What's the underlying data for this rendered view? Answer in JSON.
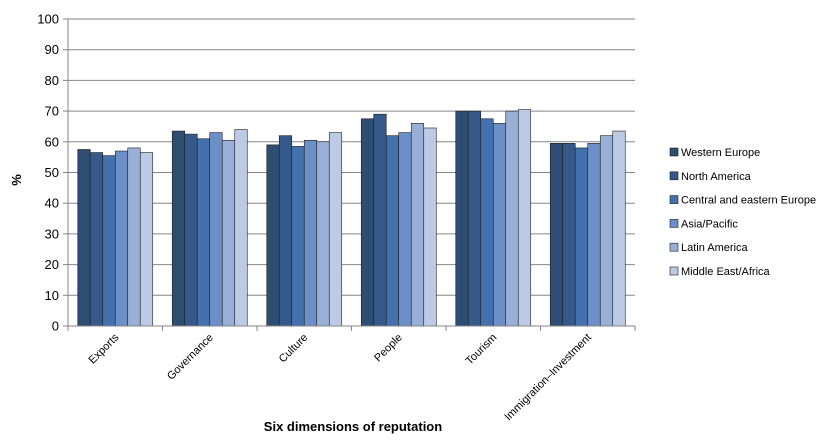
{
  "chart_data": {
    "type": "bar",
    "title": "",
    "xlabel": "Six dimensions of reputation",
    "ylabel": "%",
    "ylim": [
      0,
      100
    ],
    "yticks": [
      0,
      10,
      20,
      30,
      40,
      50,
      60,
      70,
      80,
      90,
      100
    ],
    "grid": "horizontal",
    "legend_position": "right",
    "categories": [
      "Exports",
      "Governance",
      "Culture",
      "People",
      "Tourism",
      "Immigration–Investment"
    ],
    "series": [
      {
        "name": "Western Europe",
        "color": "#2e4d73",
        "values": [
          57.5,
          63.5,
          59,
          67.5,
          70,
          59.5
        ]
      },
      {
        "name": "North America",
        "color": "#34598a",
        "values": [
          56.5,
          62.5,
          62,
          69,
          70,
          59.5
        ]
      },
      {
        "name": "Central and eastern Europe",
        "color": "#4271ad",
        "values": [
          55.5,
          61,
          58.5,
          62,
          67.5,
          58
        ]
      },
      {
        "name": "Asia/Pacific",
        "color": "#6d8fc7",
        "values": [
          57,
          63,
          60.5,
          63,
          66,
          59.5
        ]
      },
      {
        "name": "Latin America",
        "color": "#9aafd8",
        "values": [
          58,
          60.5,
          60,
          66,
          70,
          62
        ]
      },
      {
        "name": "Middle East/Africa",
        "color": "#bdcae5",
        "values": [
          56.5,
          64,
          63,
          64.5,
          70.5,
          63.5
        ]
      }
    ]
  }
}
